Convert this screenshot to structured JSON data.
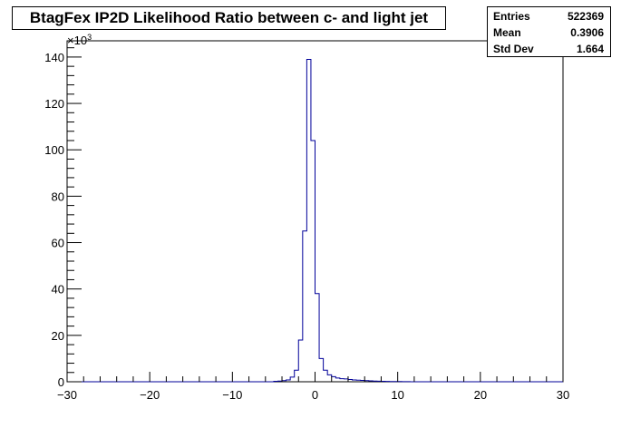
{
  "chart_data": {
    "type": "bar",
    "title": "BtagFex IP2D Likelihood Ratio between c- and light jet",
    "xlabel": "",
    "ylabel": "",
    "xlim": [
      -30,
      30
    ],
    "ylim": [
      0,
      147
    ],
    "y_multiplier_label": "×10",
    "y_multiplier_exp": "3",
    "x_ticks": [
      -30,
      -20,
      -10,
      0,
      10,
      20,
      30
    ],
    "y_ticks": [
      0,
      20,
      40,
      60,
      80,
      100,
      120,
      140
    ],
    "x_tick_labels": [
      "−30",
      "−20",
      "−10",
      "0",
      "10",
      "20",
      "30"
    ],
    "y_tick_labels": [
      "0",
      "20",
      "40",
      "60",
      "80",
      "100",
      "120",
      "140"
    ],
    "bin_edges_start": -30,
    "bin_width": 0.5,
    "values": [
      0,
      0,
      0,
      0,
      0,
      0,
      0,
      0,
      0,
      0,
      0,
      0,
      0,
      0,
      0,
      0,
      0,
      0,
      0,
      0,
      0,
      0,
      0,
      0,
      0,
      0,
      0,
      0,
      0,
      0,
      0,
      0,
      0,
      0,
      0,
      0,
      0,
      0,
      0,
      0,
      0,
      0,
      0,
      0,
      0,
      0,
      0,
      0,
      0,
      0,
      0.2,
      0.3,
      0.5,
      0.8,
      2,
      5,
      18,
      65,
      139,
      104,
      38,
      10,
      5,
      3,
      2.2,
      1.6,
      1.3,
      1.2,
      1.0,
      0.8,
      0.7,
      0.6,
      0.5,
      0.4,
      0.3,
      0.25,
      0.2,
      0.15,
      0.12,
      0.1,
      0.08,
      0.06,
      0.05,
      0,
      0,
      0,
      0,
      0,
      0,
      0,
      0,
      0,
      0,
      0,
      0,
      0,
      0,
      0,
      0,
      0,
      0,
      0,
      0,
      0,
      0,
      0,
      0,
      0,
      0,
      0,
      0,
      0,
      0,
      0,
      0,
      0,
      0,
      0,
      0,
      0
    ],
    "series_color": "#000099",
    "grid": false
  },
  "stats": {
    "entries_label": "Entries",
    "entries_value": "522369",
    "mean_label": "Mean",
    "mean_value": "0.3906",
    "stddev_label": "Std Dev",
    "stddev_value": "1.664"
  }
}
